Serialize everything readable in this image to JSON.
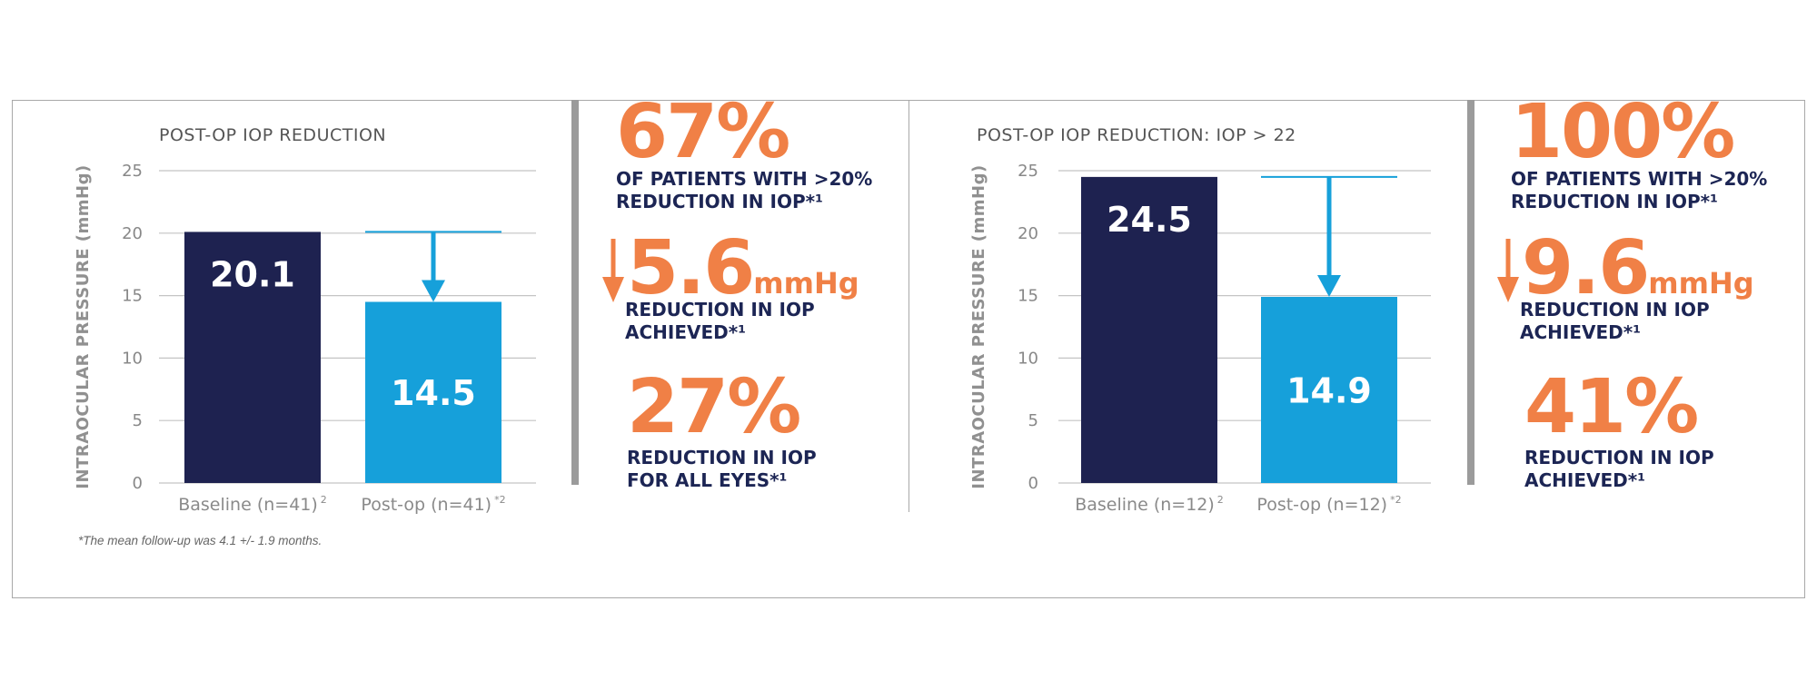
{
  "colors": {
    "baseline": "#1e2250",
    "postop": "#16a0da",
    "accent": "#f08046",
    "text_dark": "#1c2554",
    "grid": "#c4c4c4"
  },
  "chart_data": [
    {
      "type": "bar",
      "title": "POST-OP IOP REDUCTION",
      "ylabel": "INTRAOCULAR PRESSURE (mmHg)",
      "xlabel": "",
      "categories": [
        "Baseline (n=41)",
        "Post-op (n=41)"
      ],
      "category_superscripts": [
        "2",
        "*2"
      ],
      "values": [
        20.1,
        14.5
      ],
      "value_labels": [
        "20.1",
        "14.5"
      ],
      "ylim": [
        0,
        25
      ],
      "yticks": [
        0,
        5,
        10,
        15,
        20,
        25
      ],
      "grid": true,
      "annotation": "arrow from baseline level down to post-op bar"
    },
    {
      "type": "bar",
      "title": "POST-OP IOP REDUCTION: IOP > 22",
      "ylabel": "INTRAOCULAR PRESSURE (mmHg)",
      "xlabel": "",
      "categories": [
        "Baseline (n=12)",
        "Post-op (n=12)"
      ],
      "category_superscripts": [
        "2",
        "*2"
      ],
      "values": [
        24.5,
        14.9
      ],
      "value_labels": [
        "24.5",
        "14.9"
      ],
      "ylim": [
        0,
        25
      ],
      "yticks": [
        0,
        5,
        10,
        15,
        20,
        25
      ],
      "grid": true,
      "annotation": "arrow from baseline level down to post-op bar"
    }
  ],
  "stats": [
    [
      {
        "value": "67%",
        "unit": "",
        "arrow": false,
        "text": "OF PATIENTS WITH >20%\nREDUCTION IN IOP*¹"
      },
      {
        "value": "5.6",
        "unit": "mmHg",
        "arrow": true,
        "text": "REDUCTION IN IOP\nACHIEVED*¹"
      },
      {
        "value": "27%",
        "unit": "",
        "arrow": false,
        "text": "REDUCTION IN IOP\nFOR ALL EYES*¹"
      }
    ],
    [
      {
        "value": "100%",
        "unit": "",
        "arrow": false,
        "text": "OF PATIENTS WITH >20%\nREDUCTION IN IOP*¹"
      },
      {
        "value": "9.6",
        "unit": "mmHg",
        "arrow": true,
        "text": "REDUCTION IN IOP\nACHIEVED*¹"
      },
      {
        "value": "41%",
        "unit": "",
        "arrow": false,
        "text": "REDUCTION IN IOP\nACHIEVED*¹"
      }
    ]
  ],
  "footnote": "*The mean follow-up was 4.1 +/- 1.9 months."
}
